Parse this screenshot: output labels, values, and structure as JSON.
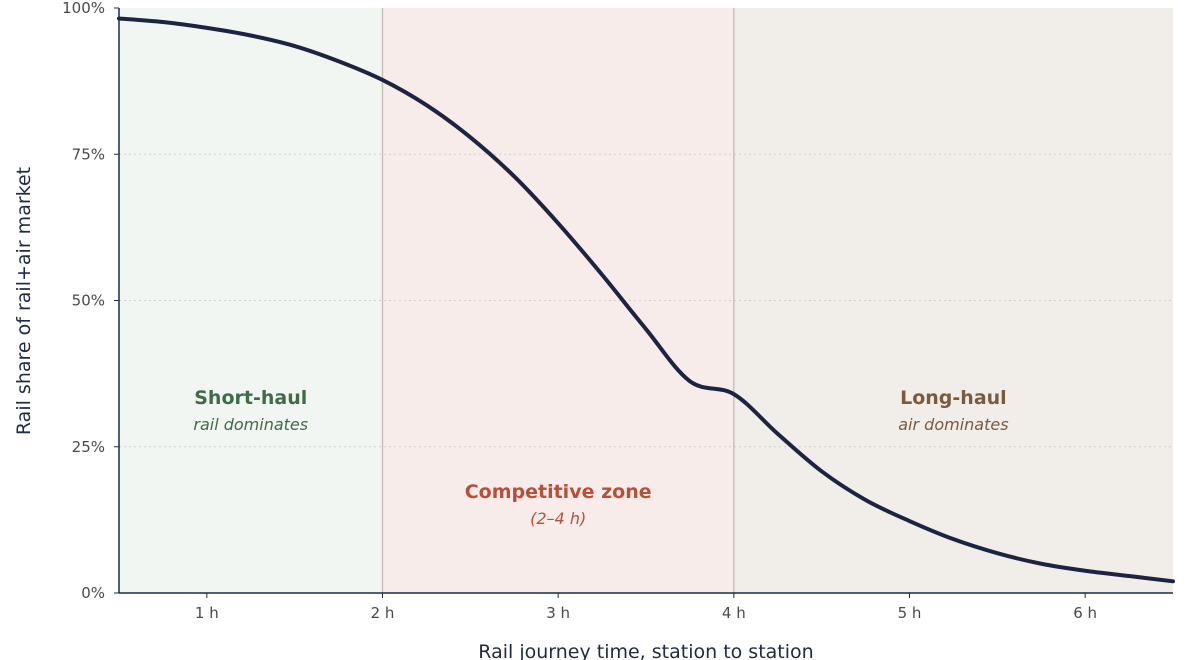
{
  "chart_data": {
    "type": "line",
    "title": "",
    "xlabel": "Rail journey time, station to station",
    "ylabel": "Rail share of rail+air market",
    "xlim": [
      0.5,
      6.5
    ],
    "ylim": [
      0,
      100
    ],
    "x_ticks": [
      1,
      2,
      3,
      4,
      5,
      6
    ],
    "x_tick_labels": [
      "1 h",
      "2 h",
      "3 h",
      "4 h",
      "5 h",
      "6 h"
    ],
    "y_ticks": [
      0,
      25,
      50,
      75,
      100
    ],
    "y_tick_labels": [
      "0%",
      "25%",
      "50%",
      "75%",
      "100%"
    ],
    "grid": "horizontal dotted",
    "series": [
      {
        "x": [
          0.5,
          0.75,
          1.0,
          1.25,
          1.5,
          1.75,
          2.0,
          2.25,
          2.5,
          2.75,
          3.0,
          3.25,
          3.5,
          3.75,
          4.0,
          4.25,
          4.5,
          4.75,
          5.0,
          5.25,
          5.5,
          5.75,
          6.0,
          6.25,
          6.5
        ],
        "y": [
          98.2,
          97.6,
          96.6,
          95.3,
          93.5,
          90.9,
          87.7,
          83.4,
          77.9,
          71.2,
          63.2,
          54.4,
          45.1,
          36.2,
          34.0,
          27.2,
          20.8,
          15.9,
          12.3,
          9.2,
          6.8,
          5.0,
          3.8,
          2.9,
          2.0
        ],
        "color": "#1b2440"
      }
    ],
    "zones": [
      {
        "from": 0.5,
        "to": 2,
        "title": "Short-haul",
        "subtitle": "rail dominates",
        "fill": "#f1f6f2",
        "text_color": "#3f6b45"
      },
      {
        "from": 2,
        "to": 4,
        "title": "Competitive zone",
        "subtitle": "(2–4 h)",
        "fill": "#f8ecea",
        "text_color": "#b7503a"
      },
      {
        "from": 4,
        "to": 6.5,
        "title": "Long-haul",
        "subtitle": "air dominates",
        "fill": "#f1ede9",
        "text_color": "#7a5b3e"
      }
    ],
    "zone_boundary_color": "#c8c2be",
    "axis_color": "#1f2a44"
  }
}
